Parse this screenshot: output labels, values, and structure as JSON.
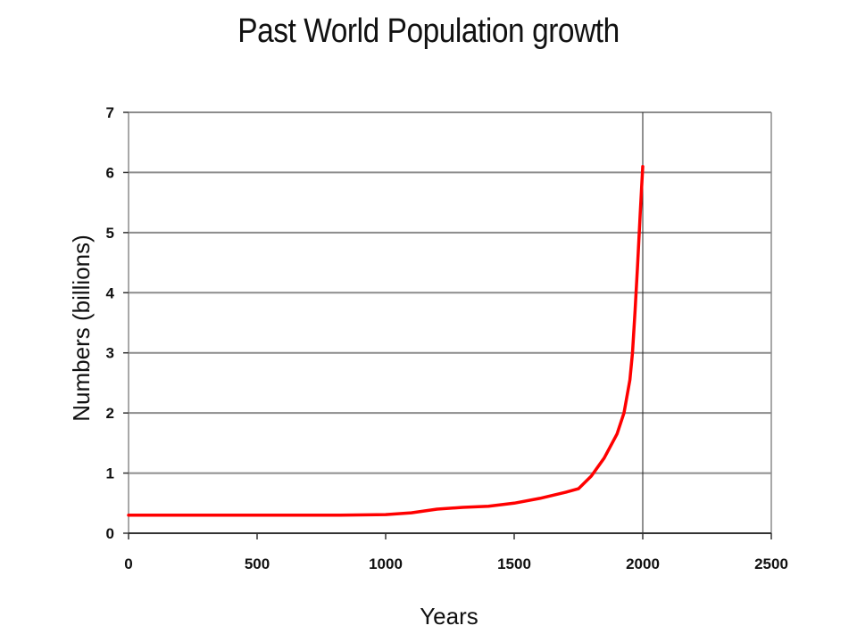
{
  "chart_data": {
    "type": "line",
    "title": "Past World Population growth",
    "xlabel": "Years",
    "ylabel": "Numbers (billions)",
    "xlim": [
      0,
      2500
    ],
    "ylim": [
      0,
      7
    ],
    "xticks": [
      0,
      500,
      1000,
      1500,
      2000,
      2500
    ],
    "yticks": [
      0,
      1,
      2,
      3,
      4,
      5,
      6,
      7
    ],
    "grid": "horizontal",
    "reference_line_x": 2000,
    "series": [
      {
        "color": "#ff0000",
        "x": [
          0,
          200,
          400,
          600,
          800,
          1000,
          1100,
          1200,
          1300,
          1400,
          1500,
          1600,
          1700,
          1750,
          1800,
          1850,
          1900,
          1927,
          1950,
          1960,
          1970,
          1980,
          1990,
          2000
        ],
        "y": [
          0.3,
          0.3,
          0.3,
          0.3,
          0.3,
          0.31,
          0.34,
          0.4,
          0.43,
          0.45,
          0.5,
          0.58,
          0.68,
          0.74,
          0.95,
          1.25,
          1.65,
          2.0,
          2.55,
          3.0,
          3.7,
          4.45,
          5.3,
          6.1
        ]
      }
    ]
  }
}
